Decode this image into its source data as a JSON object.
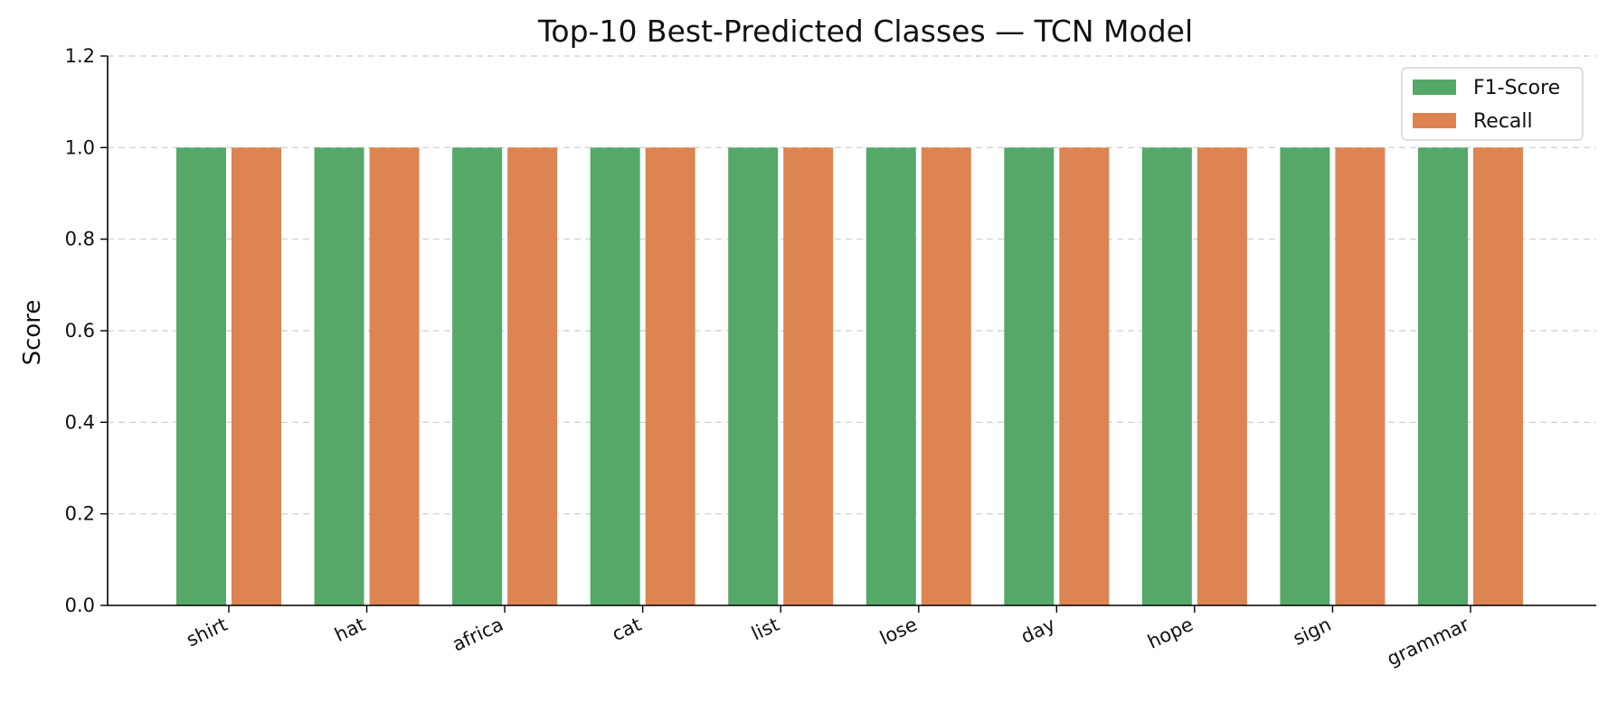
{
  "chart_data": {
    "type": "bar",
    "title": "Top-10 Best-Predicted Classes — TCN Model",
    "xlabel": "",
    "ylabel": "Score",
    "ylim": [
      0,
      1.2
    ],
    "yticks": [
      "0.0",
      "0.2",
      "0.4",
      "0.6",
      "0.8",
      "1.0",
      "1.2"
    ],
    "categories": [
      "shirt",
      "hat",
      "africa",
      "cat",
      "list",
      "lose",
      "day",
      "hope",
      "sign",
      "grammar"
    ],
    "series": [
      {
        "name": "F1-Score",
        "color": "#55a868",
        "values": [
          1.0,
          1.0,
          1.0,
          1.0,
          1.0,
          1.0,
          1.0,
          1.0,
          1.0,
          1.0
        ]
      },
      {
        "name": "Recall",
        "color": "#dd8452",
        "values": [
          1.0,
          1.0,
          1.0,
          1.0,
          1.0,
          1.0,
          1.0,
          1.0,
          1.0,
          1.0
        ]
      }
    ],
    "grid": "horizontal-dashed",
    "legend_position": "top-right"
  }
}
